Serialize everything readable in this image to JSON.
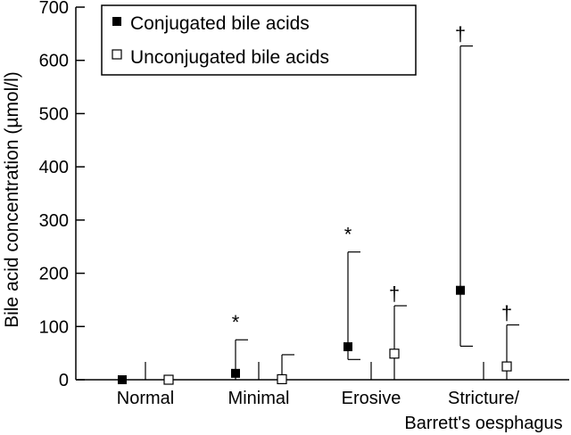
{
  "chart_data": {
    "type": "scatter",
    "ylabel": "Bile acid concentration (µmol/l)",
    "ylim": [
      0,
      700
    ],
    "yticks": [
      0,
      100,
      200,
      300,
      400,
      500,
      600,
      700
    ],
    "categories": [
      "Normal",
      "Minimal",
      "Erosive",
      "Stricture/",
      "Barrett's oesphagus"
    ],
    "groups": [
      {
        "label": "Normal"
      },
      {
        "label": "Minimal"
      },
      {
        "label": "Erosive"
      },
      {
        "label": "Stricture/",
        "label2": "Barrett's oesphagus"
      }
    ],
    "legend_position": "top-left",
    "series": [
      {
        "name": "Conjugated bile acids",
        "marker": "filled-square",
        "color": "#000000",
        "values": [
          0,
          12,
          62,
          168
        ],
        "upper": [
          0,
          75,
          240,
          627
        ],
        "lower": [
          0,
          0,
          38,
          63
        ],
        "markers": [
          "",
          "*",
          "*",
          "†"
        ]
      },
      {
        "name": "Unconjugated bile acids",
        "marker": "open-square",
        "color": "#000000",
        "values": [
          0,
          1,
          49,
          25
        ],
        "upper": [
          0,
          47,
          139,
          103
        ],
        "lower": [
          0,
          0,
          0,
          0
        ],
        "markers": [
          "",
          "",
          "†",
          "†"
        ]
      }
    ]
  }
}
